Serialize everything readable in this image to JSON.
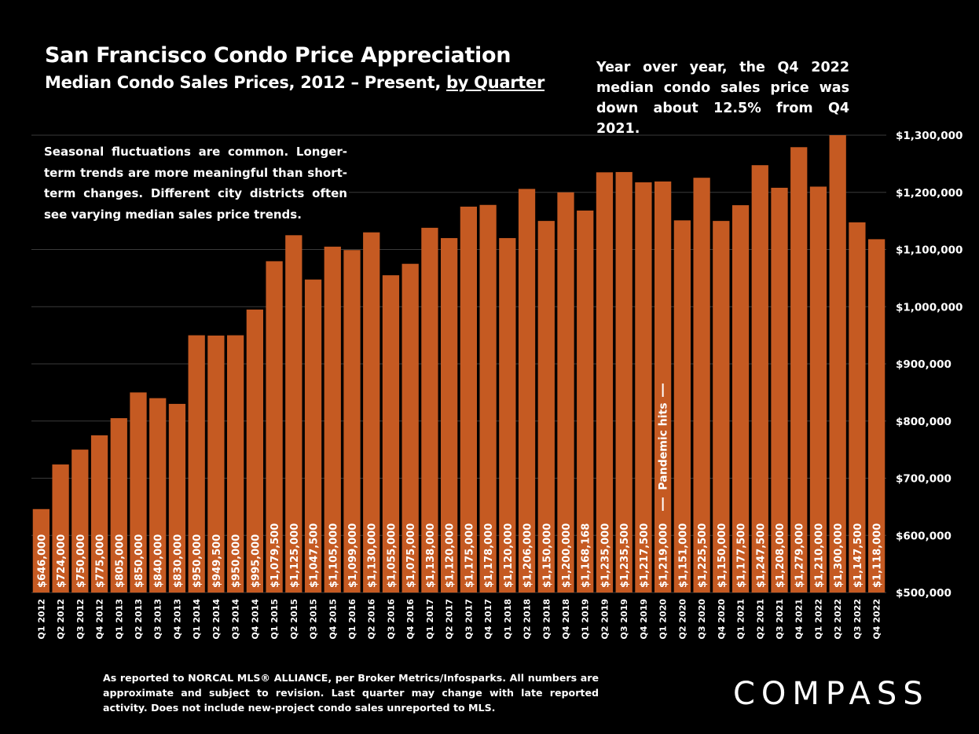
{
  "title": "San Francisco Condo Price Appreciation",
  "subtitle_prefix": "Median Condo Sales Prices, 2012 – Present,",
  "subtitle_link": "by Quarter",
  "yoy_note": "Year over year, the Q4 2022 median condo sales price was down about 12.5% from Q4 2021.",
  "seasonal_note": "Seasonal fluctuations are common. Longer-term trends are more meaningful than short-term changes. Different city districts often see varying median sales price trends.",
  "footnote": "As reported to NORCAL MLS® ALLIANCE, per Broker Metrics/Infosparks. All numbers are approximate and subject to revision. Last quarter may change with late reported activity. Does not include new-project condo sales unreported to MLS.",
  "logo": "COMPASS",
  "colors": {
    "bar": "#c55a22",
    "background": "#000000",
    "grid": "#3a3a3a",
    "text": "#ffffff"
  },
  "chart_data": {
    "type": "bar",
    "categories": [
      "Q1 2012",
      "Q2 2012",
      "Q3 2012",
      "Q4 2012",
      "Q1 2013",
      "Q2 2013",
      "Q3 2013",
      "Q4 2013",
      "Q1 2014",
      "Q2 2014",
      "Q3 2014",
      "Q4 2014",
      "Q1 2015",
      "Q2 2015",
      "Q3 2015",
      "Q4 2015",
      "Q1 2016",
      "Q2 2016",
      "Q3 2016",
      "Q4 2016",
      "Q1 2017",
      "Q2 2017",
      "Q3 2017",
      "Q4 2017",
      "Q1 2018",
      "Q2 2018",
      "Q3 2018",
      "Q4 2018",
      "Q1 2019",
      "Q2 2019",
      "Q3 2019",
      "Q4 2019",
      "Q1 2020",
      "Q2 2020",
      "Q3 2020",
      "Q4 2020",
      "Q1 2021",
      "Q2 2021",
      "Q3 2021",
      "Q4 2021",
      "Q1 2022",
      "Q2 2022",
      "Q3 2022",
      "Q4 2022"
    ],
    "values": [
      646000,
      724000,
      750000,
      775000,
      805000,
      850000,
      840000,
      830000,
      950000,
      949500,
      950000,
      995000,
      1079500,
      1125000,
      1047500,
      1105000,
      1099000,
      1130000,
      1055000,
      1075000,
      1138000,
      1120000,
      1175000,
      1178000,
      1120000,
      1206000,
      1150000,
      1200000,
      1168168,
      1235000,
      1235500,
      1217500,
      1219000,
      1151000,
      1225500,
      1150000,
      1177500,
      1247500,
      1208000,
      1279000,
      1210000,
      1300000,
      1147500,
      1118000
    ],
    "data_labels": [
      "$646,000",
      "$724,000",
      "$750,000",
      "$775,000",
      "$805,000",
      "$850,000",
      "$840,000",
      "$830,000",
      "$950,000",
      "$949,500",
      "$950,000",
      "$995,000",
      "$1,079,500",
      "$1,125,000",
      "$1,047,500",
      "$1,105,000",
      "$1,099,000",
      "$1,130,000",
      "$1,055,000",
      "$1,075,000",
      "$1,138,000",
      "$1,120,000",
      "$1,175,000",
      "$1,178,000",
      "$1,120,000",
      "$1,206,000",
      "$1,150,000",
      "$1,200,000",
      "$1,168,168",
      "$1,235,000",
      "$1,235,500",
      "$1,217,500",
      "$1,219,000",
      "$1,151,000",
      "$1,225,500",
      "$1,150,000",
      "$1,177,500",
      "$1,247,500",
      "$1,208,000",
      "$1,279,000",
      "$1,210,000",
      "$1,300,000",
      "$1,147,500",
      "$1,118,000"
    ],
    "ylim": [
      500000,
      1300000
    ],
    "y_ticks": [
      500000,
      600000,
      700000,
      800000,
      900000,
      1000000,
      1100000,
      1200000,
      1300000
    ],
    "y_tick_labels": [
      "$500,000",
      "$600,000",
      "$700,000",
      "$800,000",
      "$900,000",
      "$1,000,000",
      "$1,100,000",
      "$1,200,000",
      "$1,300,000"
    ],
    "y_axis_side": "right",
    "grid": true,
    "annotation": {
      "text": "Pandemic hits",
      "category": "Q1 2020"
    }
  }
}
